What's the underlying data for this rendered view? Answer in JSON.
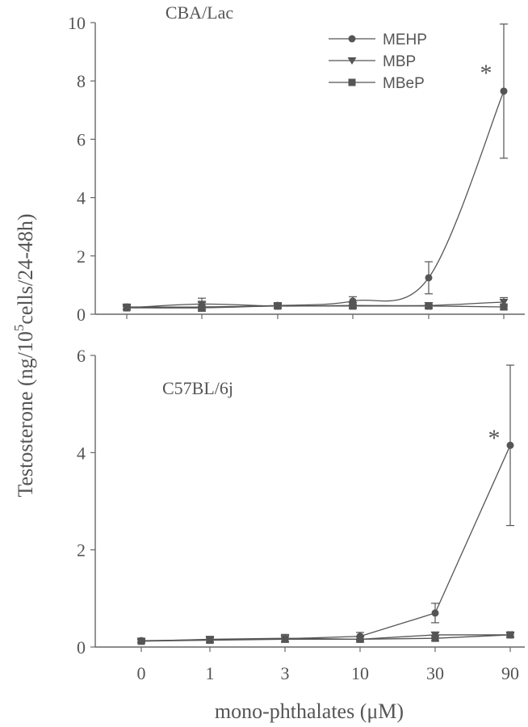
{
  "chart_data": {
    "type": "line",
    "ylabel": "Testosterone (ng/10⁵cells/24-48h)",
    "ylabel_parts": {
      "pre": "Testosterone (ng/10",
      "sup": "5",
      "post": "cells/24-48h)"
    },
    "xlabel": "mono-phthalates (μM)",
    "x_categories": [
      "0",
      "1",
      "3",
      "10",
      "30",
      "90"
    ],
    "legend": {
      "position": "top-right",
      "entries": [
        {
          "name": "MEHP",
          "marker": "circle"
        },
        {
          "name": "MBP",
          "marker": "triangle-down"
        },
        {
          "name": "MBeP",
          "marker": "square"
        }
      ]
    },
    "series_color": "#555555",
    "panels": [
      {
        "title": "CBA/Lac",
        "ylim": [
          0,
          10
        ],
        "yticks": [
          0,
          2,
          4,
          6,
          8,
          10
        ],
        "smooth": true,
        "series": [
          {
            "name": "MEHP",
            "marker": "circle",
            "values": [
              0.25,
              0.25,
              0.3,
              0.45,
              1.25,
              7.65
            ],
            "errors": [
              0.1,
              0.15,
              0.1,
              0.15,
              0.55,
              2.3
            ]
          },
          {
            "name": "MBP",
            "marker": "triangle-down",
            "values": [
              0.22,
              0.35,
              0.28,
              0.3,
              0.3,
              0.42
            ],
            "errors": [
              0.05,
              0.2,
              0.08,
              0.1,
              0.1,
              0.15
            ]
          },
          {
            "name": "MBeP",
            "marker": "square",
            "values": [
              0.22,
              0.22,
              0.28,
              0.28,
              0.28,
              0.25
            ],
            "errors": [
              0.05,
              0.05,
              0.05,
              0.05,
              0.05,
              0.08
            ]
          }
        ],
        "annotations": [
          {
            "text": "*",
            "category": "90"
          }
        ]
      },
      {
        "title": "C57BL/6j",
        "ylim": [
          0,
          6
        ],
        "yticks": [
          0,
          2,
          4,
          6
        ],
        "smooth": false,
        "series": [
          {
            "name": "MEHP",
            "marker": "circle",
            "values": [
              0.13,
              0.15,
              0.17,
              0.22,
              0.7,
              4.15
            ],
            "errors": [
              0.03,
              0.05,
              0.06,
              0.08,
              0.2,
              1.65
            ]
          },
          {
            "name": "MBP",
            "marker": "triangle-down",
            "values": [
              0.12,
              0.16,
              0.18,
              0.16,
              0.25,
              0.25
            ],
            "errors": [
              0.03,
              0.06,
              0.08,
              0.06,
              0.06,
              0.05
            ]
          },
          {
            "name": "MBeP",
            "marker": "square",
            "values": [
              0.12,
              0.14,
              0.16,
              0.16,
              0.18,
              0.25
            ],
            "errors": [
              0.03,
              0.05,
              0.06,
              0.05,
              0.05,
              0.04
            ]
          }
        ],
        "annotations": [
          {
            "text": "*",
            "category": "90"
          }
        ]
      }
    ]
  }
}
